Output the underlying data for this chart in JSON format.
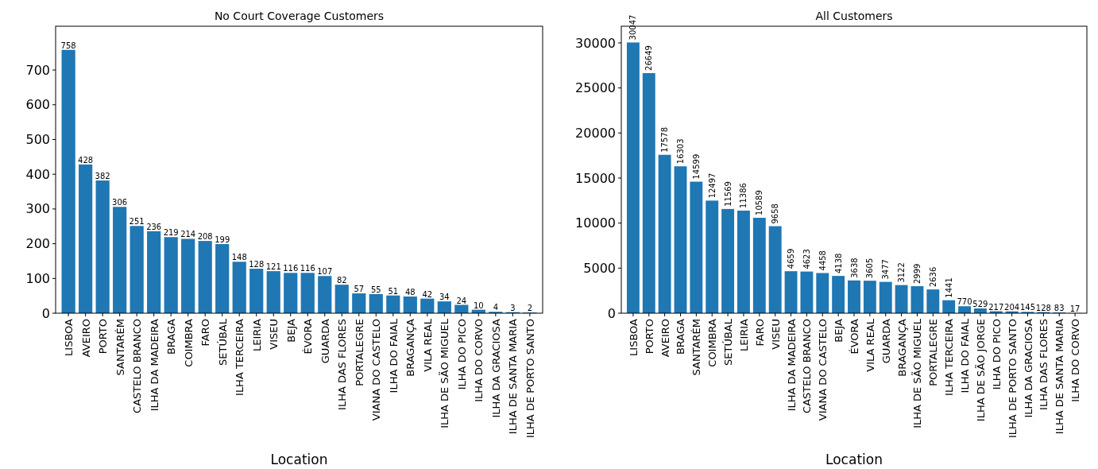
{
  "chart_data": [
    {
      "type": "bar",
      "title": "No Court Coverage Customers",
      "xlabel": "Location",
      "categories": [
        "LISBOA",
        "AVEIRO",
        "PORTO",
        "SANTARÉM",
        "CASTELO BRANCO",
        "ILHA DA MADEIRA",
        "BRAGA",
        "COIMBRA",
        "FARO",
        "SETÚBAL",
        "ILHA TERCEIRA",
        "LEIRIA",
        "VISEU",
        "BEJA",
        "ÉVORA",
        "GUARDA",
        "ILHA DAS FLORES",
        "PORTALEGRE",
        "VIANA DO CASTELO",
        "ILHA DO FAIAL",
        "BRAGANÇA",
        "VILA REAL",
        "ILHA DE SÃO MIGUEL",
        "ILHA DO PICO",
        "ILHA DO CORVO",
        "ILHA DA GRACIOSA",
        "ILHA DE SANTA MARIA",
        "ILHA DE PORTO SANTO"
      ],
      "values": [
        758,
        428,
        382,
        306,
        251,
        236,
        219,
        214,
        208,
        199,
        148,
        128,
        121,
        116,
        116,
        107,
        82,
        57,
        55,
        51,
        48,
        42,
        34,
        24,
        10,
        4,
        3,
        2
      ],
      "color": "#1f77b4",
      "ylim": [
        0,
        826
      ],
      "yticks": [
        0,
        100,
        200,
        300,
        400,
        500,
        600,
        700
      ],
      "data_labels": true
    },
    {
      "type": "bar",
      "title": "All Customers",
      "xlabel": "Location",
      "categories": [
        "LISBOA",
        "PORTO",
        "AVEIRO",
        "BRAGA",
        "SANTARÉM",
        "COIMBRA",
        "SETÚBAL",
        "LEIRIA",
        "FARO",
        "VISEU",
        "ILHA DA MADEIRA",
        "CASTELO BRANCO",
        "VIANA DO CASTELO",
        "BEJA",
        "ÉVORA",
        "VILA REAL",
        "GUARDA",
        "BRAGANÇA",
        "ILHA DE SÃO MIGUEL",
        "PORTALEGRE",
        "ILHA TERCEIRA",
        "ILHA DO FAIAL",
        "ILHA DE SÃO JORGE",
        "ILHA DO PICO",
        "ILHA DE PORTO SANTO",
        "ILHA DA GRACIOSA",
        "ILHA DAS FLORES",
        "ILHA DE SANTA MARIA",
        "ILHA DO CORVO"
      ],
      "values": [
        30047,
        26649,
        17578,
        16303,
        14599,
        12497,
        11569,
        11386,
        10589,
        9658,
        4659,
        4623,
        4458,
        4138,
        3638,
        3605,
        3477,
        3122,
        2999,
        2636,
        1441,
        770,
        529,
        217,
        204,
        145,
        128,
        83,
        17
      ],
      "color": "#1f77b4",
      "ylim": [
        0,
        31850
      ],
      "yticks": [
        0,
        5000,
        10000,
        15000,
        20000,
        25000,
        30000
      ],
      "data_labels": true
    }
  ]
}
